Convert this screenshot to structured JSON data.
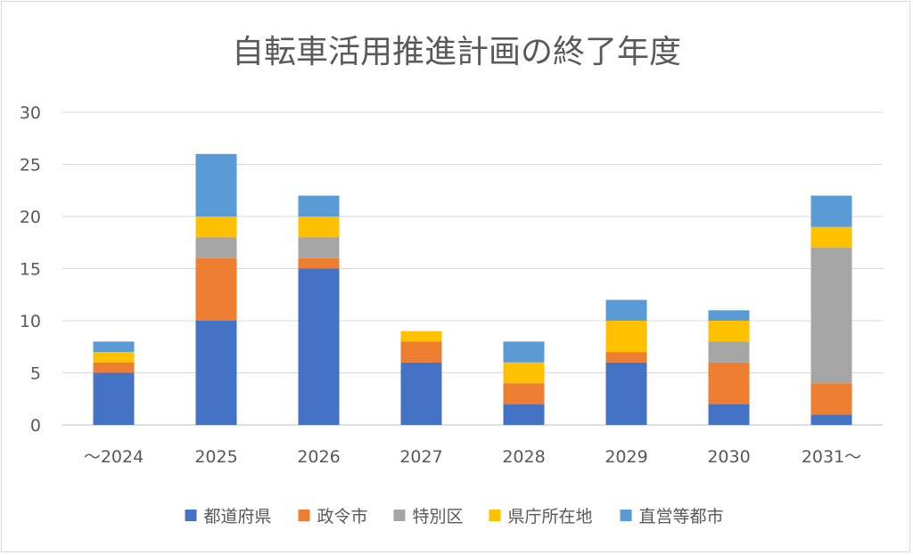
{
  "chart_data": {
    "type": "bar",
    "stacked": true,
    "title": "自転車活用推進計画の終了年度",
    "xlabel": "",
    "ylabel": "",
    "ylim": [
      0,
      30
    ],
    "yticks": [
      0,
      5,
      10,
      15,
      20,
      25,
      30
    ],
    "grid": true,
    "legend_position": "bottom",
    "categories": [
      "～2024",
      "2025",
      "2026",
      "2027",
      "2028",
      "2029",
      "2030",
      "2031～"
    ],
    "series": [
      {
        "name": "都道府県",
        "color": "#4472c4",
        "values": [
          5,
          10,
          15,
          6,
          2,
          6,
          2,
          1
        ]
      },
      {
        "name": "政令市",
        "color": "#ed7d31",
        "values": [
          1,
          6,
          1,
          2,
          2,
          1,
          4,
          3
        ]
      },
      {
        "name": "特別区",
        "color": "#a5a5a5",
        "values": [
          0,
          2,
          2,
          0,
          0,
          0,
          2,
          13
        ]
      },
      {
        "name": "県庁所在地",
        "color": "#ffc000",
        "values": [
          1,
          2,
          2,
          1,
          2,
          3,
          2,
          2
        ]
      },
      {
        "name": "直営等都市",
        "color": "#5b9bd5",
        "values": [
          1,
          6,
          2,
          0,
          2,
          2,
          1,
          3
        ]
      }
    ]
  }
}
